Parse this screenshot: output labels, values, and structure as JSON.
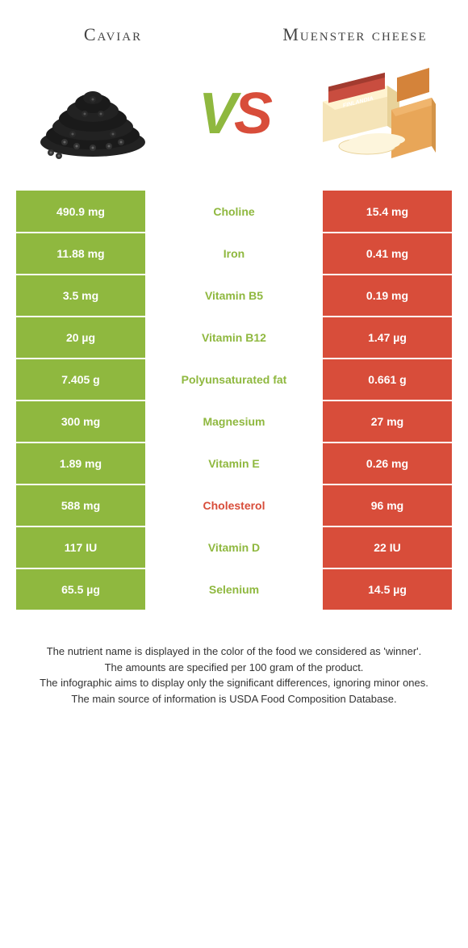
{
  "header": {
    "left_title": "Caviar",
    "right_title": "Muenster cheese"
  },
  "vs": {
    "v": "V",
    "s": "S"
  },
  "colors": {
    "green": "#8fb83f",
    "red": "#d84d3a",
    "white": "#ffffff",
    "text": "#333333"
  },
  "table": {
    "rows": [
      {
        "left": "490.9 mg",
        "mid": "Choline",
        "mid_color": "green",
        "right": "15.4 mg"
      },
      {
        "left": "11.88 mg",
        "mid": "Iron",
        "mid_color": "green",
        "right": "0.41 mg"
      },
      {
        "left": "3.5 mg",
        "mid": "Vitamin B5",
        "mid_color": "green",
        "right": "0.19 mg"
      },
      {
        "left": "20 µg",
        "mid": "Vitamin B12",
        "mid_color": "green",
        "right": "1.47 µg"
      },
      {
        "left": "7.405 g",
        "mid": "Polyunsaturated fat",
        "mid_color": "green",
        "right": "0.661 g"
      },
      {
        "left": "300 mg",
        "mid": "Magnesium",
        "mid_color": "green",
        "right": "27 mg"
      },
      {
        "left": "1.89 mg",
        "mid": "Vitamin E",
        "mid_color": "green",
        "right": "0.26 mg"
      },
      {
        "left": "588 mg",
        "mid": "Cholesterol",
        "mid_color": "red",
        "right": "96 mg"
      },
      {
        "left": "117 IU",
        "mid": "Vitamin D",
        "mid_color": "green",
        "right": "22 IU"
      },
      {
        "left": "65.5 µg",
        "mid": "Selenium",
        "mid_color": "green",
        "right": "14.5 µg"
      }
    ]
  },
  "footer": {
    "line1": "The nutrient name is displayed in the color of the food we considered as 'winner'.",
    "line2": "The amounts are specified per 100 gram of the product.",
    "line3": "The infographic aims to display only the significant differences, ignoring minor ones.",
    "line4": "The main source of information is USDA Food Composition Database."
  }
}
